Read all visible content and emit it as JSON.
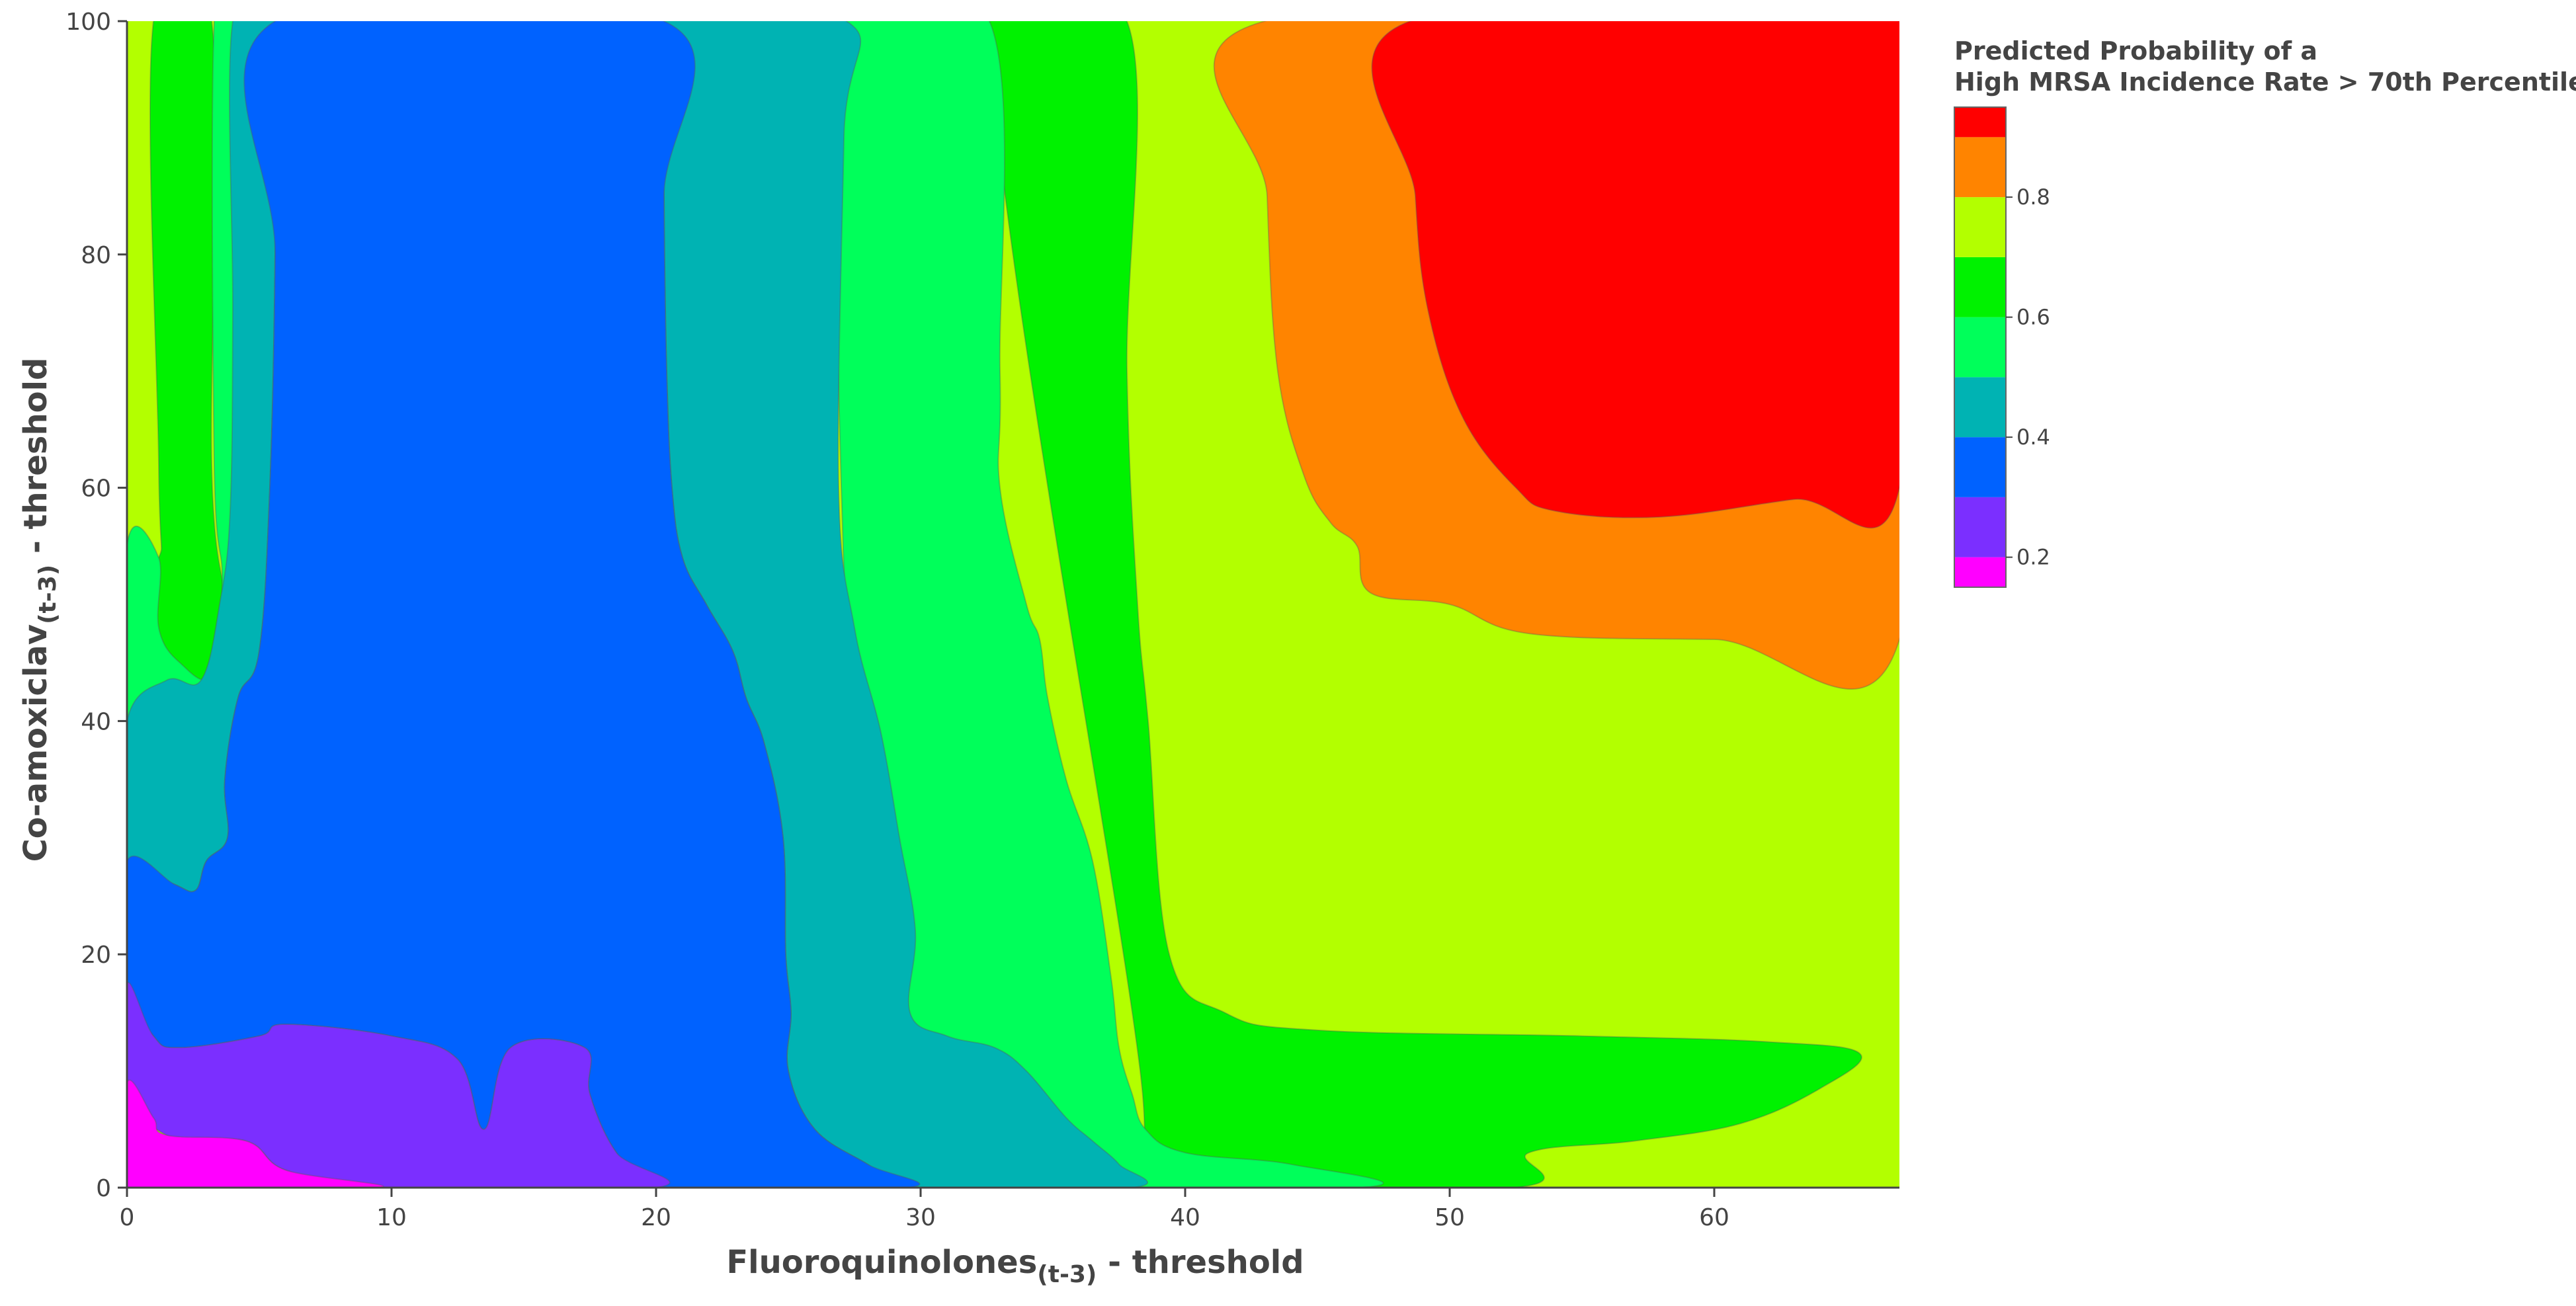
{
  "chart_data": {
    "type": "contour",
    "xlabel": "Fluoroquinolones",
    "xlabel_sub": "(t-3)",
    "xlabel_suffix": " - threshold",
    "ylabel": "Co-amoxiclav",
    "ylabel_sub": "(t-3)",
    "ylabel_suffix": " - threshold",
    "xlim": [
      0,
      67
    ],
    "ylim": [
      0,
      100
    ],
    "x_ticks": [
      0,
      10,
      20,
      30,
      40,
      50,
      60
    ],
    "y_ticks": [
      0,
      20,
      40,
      60,
      80,
      100
    ],
    "colorbar": {
      "title_line1": "Predicted Probability of a",
      "title_line2": "High MRSA Incidence Rate > 70th Percentile",
      "range": [
        0.15,
        0.95
      ],
      "ticks": [
        0.2,
        0.4,
        0.6,
        0.8
      ],
      "tick_labels": [
        "0.2",
        "0.4",
        "0.6",
        "0.8"
      ]
    },
    "levels": [
      {
        "range": [
          0.15,
          0.2
        ],
        "color": "#ff00ff"
      },
      {
        "range": [
          0.2,
          0.3
        ],
        "color": "#7b2fff"
      },
      {
        "range": [
          0.3,
          0.4
        ],
        "color": "#0062ff"
      },
      {
        "range": [
          0.4,
          0.5
        ],
        "color": "#00b3b3"
      },
      {
        "range": [
          0.5,
          0.6
        ],
        "color": "#00ff5a"
      },
      {
        "range": [
          0.6,
          0.7
        ],
        "color": "#00f200"
      },
      {
        "range": [
          0.7,
          0.8
        ],
        "color": "#b3ff00"
      },
      {
        "range": [
          0.8,
          0.9
        ],
        "color": "#ff8400"
      },
      {
        "range": [
          0.9,
          0.95
        ],
        "color": "#ff0000"
      }
    ],
    "regions": [
      {
        "level": 0.75,
        "color": "#b3ff00",
        "points": [
          [
            0,
            0
          ],
          [
            67,
            0
          ],
          [
            67,
            100
          ],
          [
            0,
            100
          ]
        ]
      },
      {
        "level": 0.65,
        "color": "#00f200",
        "points": [
          [
            1,
            100
          ],
          [
            3.2,
            100
          ],
          [
            3.2,
            62
          ],
          [
            3.7,
            50
          ],
          [
            3.5,
            44
          ],
          [
            3.2,
            38
          ],
          [
            1.2,
            37
          ],
          [
            0,
            33
          ],
          [
            0,
            55
          ],
          [
            1.2,
            54
          ],
          [
            1.2,
            62
          ]
        ]
      },
      {
        "level": 0.65,
        "color": "#00f200",
        "points": [
          [
            32.6,
            100
          ],
          [
            37.8,
            100
          ],
          [
            37.8,
            70
          ],
          [
            38.2,
            50
          ],
          [
            38.6,
            40
          ],
          [
            39.4,
            20
          ],
          [
            41.5,
            15
          ],
          [
            45,
            13.5
          ],
          [
            55,
            13
          ],
          [
            62,
            12.5
          ],
          [
            65.5,
            11.5
          ],
          [
            64,
            8.5
          ],
          [
            61,
            5.5
          ],
          [
            57,
            4
          ],
          [
            53,
            3
          ],
          [
            52.4,
            0
          ],
          [
            38,
            0
          ],
          [
            38.3,
            10
          ]
        ]
      },
      {
        "level": 0.55,
        "color": "#00ff5a",
        "points": [
          [
            27.2,
            100
          ],
          [
            32.6,
            100
          ],
          [
            33,
            70
          ],
          [
            33,
            60
          ],
          [
            34,
            50
          ],
          [
            34.5,
            47
          ],
          [
            34.8,
            42
          ],
          [
            35.5,
            35
          ],
          [
            36.5,
            28
          ],
          [
            37.2,
            18
          ],
          [
            37.5,
            12
          ],
          [
            38,
            8
          ],
          [
            38.5,
            5
          ],
          [
            40,
            3
          ],
          [
            44,
            2
          ],
          [
            46.5,
            0
          ],
          [
            28,
            0
          ],
          [
            27.5,
            25
          ]
        ]
      },
      {
        "level": 0.55,
        "color": "#00ff5a",
        "points": [
          [
            0,
            55
          ],
          [
            1.2,
            54
          ],
          [
            1.2,
            48
          ],
          [
            2,
            45
          ],
          [
            3.2,
            44
          ],
          [
            3.6,
            52
          ],
          [
            3.3,
            62
          ],
          [
            3.3,
            100
          ],
          [
            4.1,
            100
          ],
          [
            4,
            60
          ],
          [
            3.8,
            47
          ],
          [
            3.7,
            41
          ],
          [
            2.8,
            37.5
          ],
          [
            1.5,
            36
          ],
          [
            0,
            33
          ]
        ]
      },
      {
        "level": 0.45,
        "color": "#00b3b3",
        "points": [
          [
            20.3,
            100
          ],
          [
            27.2,
            100
          ],
          [
            27.1,
            90
          ],
          [
            26.9,
            60
          ],
          [
            27.5,
            48
          ],
          [
            28.5,
            39
          ],
          [
            29.2,
            30
          ],
          [
            29.8,
            22
          ],
          [
            29.6,
            15
          ],
          [
            31,
            13
          ],
          [
            32.8,
            12
          ],
          [
            34,
            10
          ],
          [
            35.5,
            6
          ],
          [
            36.5,
            4
          ],
          [
            37.5,
            2
          ],
          [
            38,
            0
          ],
          [
            29.5,
            0
          ],
          [
            28,
            2
          ],
          [
            26,
            5
          ],
          [
            25,
            10
          ],
          [
            25.1,
            15
          ],
          [
            24.9,
            20
          ],
          [
            24.8,
            30
          ],
          [
            24.1,
            38
          ],
          [
            23.4,
            42
          ],
          [
            22.9,
            46
          ],
          [
            21.9,
            50
          ],
          [
            21,
            54
          ],
          [
            20.6,
            60
          ],
          [
            20.4,
            70
          ],
          [
            20.3,
            85
          ]
        ]
      },
      {
        "level": 0.45,
        "color": "#00b3b3",
        "points": [
          [
            4,
            100
          ],
          [
            5.6,
            100
          ],
          [
            5.6,
            80
          ],
          [
            5.4,
            60
          ],
          [
            5,
            46
          ],
          [
            4.2,
            42
          ],
          [
            3.7,
            35
          ],
          [
            3.8,
            30
          ],
          [
            3,
            28
          ],
          [
            2.6,
            25.5
          ],
          [
            1.8,
            26
          ],
          [
            0,
            28
          ],
          [
            0,
            40
          ],
          [
            1.5,
            43.5
          ],
          [
            2.8,
            43.5
          ],
          [
            3.5,
            50
          ],
          [
            3.9,
            58
          ],
          [
            4,
            75
          ]
        ]
      },
      {
        "level": 0.35,
        "color": "#0062ff",
        "points": [
          [
            5.6,
            100
          ],
          [
            20.3,
            100
          ],
          [
            20.3,
            85
          ],
          [
            20.4,
            70
          ],
          [
            20.6,
            60
          ],
          [
            21,
            54
          ],
          [
            21.9,
            50
          ],
          [
            22.9,
            46
          ],
          [
            23.4,
            42
          ],
          [
            24.1,
            38
          ],
          [
            24.8,
            30
          ],
          [
            24.9,
            20
          ],
          [
            25.1,
            15
          ],
          [
            25,
            10
          ],
          [
            26,
            5
          ],
          [
            28,
            2
          ],
          [
            29.5,
            0
          ],
          [
            20,
            0
          ],
          [
            18.5,
            3
          ],
          [
            17.5,
            8
          ],
          [
            17.3,
            12
          ],
          [
            14.5,
            12
          ],
          [
            13.5,
            5
          ],
          [
            12.5,
            11
          ],
          [
            10,
            13
          ],
          [
            6,
            14
          ],
          [
            5,
            13
          ],
          [
            2,
            12
          ],
          [
            1,
            13
          ],
          [
            0,
            17.5
          ],
          [
            0,
            28
          ],
          [
            1.8,
            26
          ],
          [
            2.6,
            25.5
          ],
          [
            3,
            28
          ],
          [
            3.8,
            30
          ],
          [
            3.7,
            35
          ],
          [
            4.2,
            42
          ],
          [
            5,
            46
          ],
          [
            5.4,
            60
          ],
          [
            5.6,
            80
          ]
        ]
      },
      {
        "level": 0.25,
        "color": "#7b2fff",
        "points": [
          [
            0,
            17.5
          ],
          [
            1,
            13
          ],
          [
            2,
            12
          ],
          [
            5,
            13
          ],
          [
            6,
            14
          ],
          [
            10,
            13
          ],
          [
            12.5,
            11
          ],
          [
            13.5,
            5
          ],
          [
            14.5,
            12
          ],
          [
            17.3,
            12
          ],
          [
            17.5,
            8
          ],
          [
            18.5,
            3
          ],
          [
            20,
            0
          ],
          [
            9.5,
            0
          ],
          [
            6,
            1.5
          ],
          [
            4.5,
            4
          ],
          [
            1.5,
            4.5
          ],
          [
            0,
            9
          ]
        ]
      },
      {
        "level": 0.175,
        "color": "#ff00ff",
        "points": [
          [
            0,
            9
          ],
          [
            1,
            6
          ],
          [
            1.5,
            4.5
          ],
          [
            4.5,
            4
          ],
          [
            6,
            1.5
          ],
          [
            9.5,
            0
          ],
          [
            0,
            0
          ]
        ]
      },
      {
        "level": 0.85,
        "color": "#ff8400",
        "points": [
          [
            43,
            100
          ],
          [
            67,
            100
          ],
          [
            67,
            47
          ],
          [
            60,
            47
          ],
          [
            53,
            47.5
          ],
          [
            50,
            50
          ],
          [
            47,
            51
          ],
          [
            46.5,
            55
          ],
          [
            45.5,
            57
          ],
          [
            44.5,
            61
          ],
          [
            43.5,
            70
          ],
          [
            43.1,
            85
          ]
        ]
      },
      {
        "level": 0.925,
        "color": "#ff0000",
        "points": [
          [
            48.5,
            100
          ],
          [
            67,
            100
          ],
          [
            67,
            60
          ],
          [
            63,
            59
          ],
          [
            58,
            57.5
          ],
          [
            54,
            58
          ],
          [
            52.5,
            60
          ],
          [
            50.5,
            66
          ],
          [
            49.2,
            75
          ],
          [
            48.7,
            85
          ]
        ]
      }
    ]
  }
}
